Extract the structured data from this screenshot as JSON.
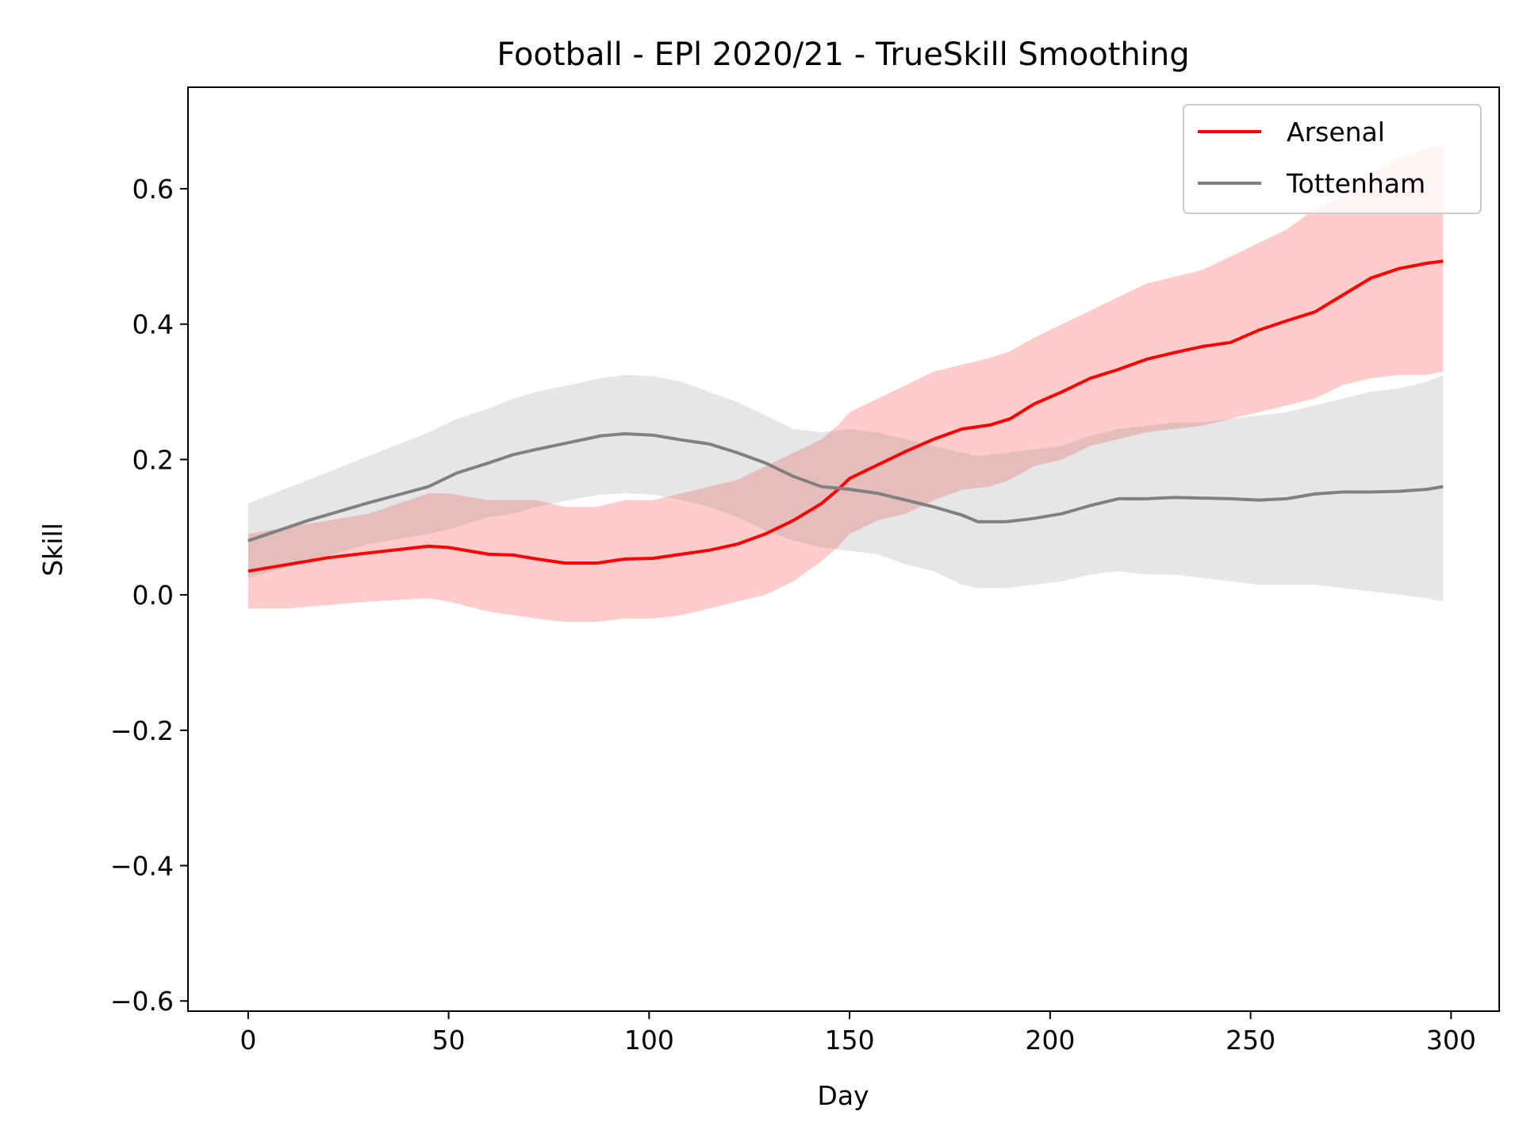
{
  "chart_data": {
    "type": "line",
    "title": "Football - EPl 2020/21 - TrueSkill Smoothing",
    "xlabel": "Day",
    "ylabel": "Skill",
    "xlim": [
      -15,
      312
    ],
    "ylim": [
      -0.615,
      0.75
    ],
    "xticks": [
      0,
      50,
      100,
      150,
      200,
      250,
      300
    ],
    "xtick_labels": [
      "0",
      "50",
      "100",
      "150",
      "200",
      "250",
      "300"
    ],
    "yticks": [
      -0.6,
      -0.4,
      -0.2,
      0.0,
      0.2,
      0.4,
      0.6
    ],
    "ytick_labels": [
      "−0.6",
      "−0.4",
      "−0.2",
      "0.0",
      "0.2",
      "0.4",
      "0.6"
    ],
    "grid": false,
    "legend_position": "top-right",
    "series": [
      {
        "name": "Arsenal",
        "color": "#ff0000",
        "band_color": "#ff0000",
        "band_opacity": 0.2,
        "x": [
          0,
          10,
          20,
          30,
          45,
          50,
          60,
          66,
          72,
          79,
          87,
          94,
          101,
          108,
          115,
          122,
          129,
          136,
          143,
          147,
          150,
          157,
          164,
          171,
          178,
          185,
          190,
          196,
          203,
          210,
          217,
          224,
          231,
          238,
          245,
          252,
          259,
          266,
          273,
          280,
          287,
          294,
          298
        ],
        "mean": [
          0.035,
          0.045,
          0.055,
          0.062,
          0.072,
          0.07,
          0.06,
          0.059,
          0.053,
          0.047,
          0.047,
          0.053,
          0.054,
          0.06,
          0.066,
          0.075,
          0.09,
          0.11,
          0.135,
          0.155,
          0.172,
          0.192,
          0.212,
          0.23,
          0.245,
          0.251,
          0.26,
          0.282,
          0.3,
          0.32,
          0.333,
          0.348,
          0.358,
          0.367,
          0.373,
          0.391,
          0.405,
          0.418,
          0.443,
          0.468,
          0.482,
          0.49,
          0.493
        ],
        "upper": [
          0.09,
          0.1,
          0.11,
          0.12,
          0.15,
          0.15,
          0.14,
          0.14,
          0.14,
          0.13,
          0.13,
          0.14,
          0.14,
          0.15,
          0.16,
          0.17,
          0.19,
          0.21,
          0.23,
          0.25,
          0.27,
          0.29,
          0.31,
          0.33,
          0.34,
          0.35,
          0.36,
          0.38,
          0.4,
          0.42,
          0.44,
          0.46,
          0.47,
          0.48,
          0.5,
          0.52,
          0.54,
          0.57,
          0.59,
          0.62,
          0.645,
          0.66,
          0.665
        ],
        "lower": [
          -0.02,
          -0.02,
          -0.015,
          -0.01,
          -0.005,
          -0.01,
          -0.025,
          -0.03,
          -0.035,
          -0.04,
          -0.04,
          -0.035,
          -0.035,
          -0.03,
          -0.02,
          -0.01,
          0.0,
          0.02,
          0.05,
          0.07,
          0.09,
          0.11,
          0.12,
          0.14,
          0.155,
          0.16,
          0.17,
          0.19,
          0.2,
          0.22,
          0.23,
          0.24,
          0.245,
          0.25,
          0.26,
          0.27,
          0.28,
          0.29,
          0.31,
          0.32,
          0.325,
          0.325,
          0.33
        ]
      },
      {
        "name": "Tottenham",
        "color": "#808080",
        "band_color": "#808080",
        "band_opacity": 0.2,
        "x": [
          0,
          15,
          30,
          45,
          52,
          60,
          66,
          72,
          80,
          88,
          94,
          101,
          108,
          115,
          122,
          129,
          136,
          143,
          150,
          157,
          164,
          171,
          178,
          182,
          189,
          196,
          203,
          210,
          217,
          224,
          231,
          238,
          245,
          252,
          259,
          266,
          273,
          280,
          287,
          294,
          298
        ],
        "mean": [
          0.08,
          0.11,
          0.136,
          0.16,
          0.18,
          0.195,
          0.207,
          0.215,
          0.225,
          0.235,
          0.238,
          0.236,
          0.229,
          0.223,
          0.21,
          0.195,
          0.175,
          0.16,
          0.156,
          0.15,
          0.14,
          0.13,
          0.118,
          0.108,
          0.108,
          0.113,
          0.12,
          0.132,
          0.142,
          0.142,
          0.144,
          0.143,
          0.142,
          0.14,
          0.142,
          0.149,
          0.152,
          0.152,
          0.153,
          0.156,
          0.16
        ],
        "upper": [
          0.135,
          0.17,
          0.205,
          0.24,
          0.26,
          0.275,
          0.29,
          0.3,
          0.31,
          0.32,
          0.325,
          0.323,
          0.315,
          0.3,
          0.285,
          0.265,
          0.245,
          0.24,
          0.245,
          0.24,
          0.23,
          0.22,
          0.21,
          0.205,
          0.21,
          0.215,
          0.22,
          0.235,
          0.245,
          0.25,
          0.255,
          0.255,
          0.26,
          0.265,
          0.27,
          0.28,
          0.29,
          0.3,
          0.305,
          0.315,
          0.325
        ],
        "lower": [
          0.025,
          0.05,
          0.075,
          0.09,
          0.1,
          0.115,
          0.12,
          0.13,
          0.14,
          0.148,
          0.15,
          0.148,
          0.14,
          0.13,
          0.115,
          0.095,
          0.08,
          0.07,
          0.065,
          0.06,
          0.045,
          0.035,
          0.015,
          0.01,
          0.01,
          0.015,
          0.02,
          0.03,
          0.035,
          0.03,
          0.03,
          0.025,
          0.02,
          0.015,
          0.015,
          0.015,
          0.01,
          0.005,
          0.0,
          -0.005,
          -0.01
        ]
      }
    ]
  }
}
